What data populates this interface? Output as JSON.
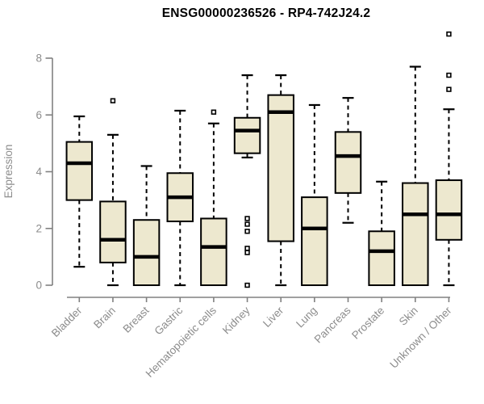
{
  "chart_data": {
    "type": "boxplot",
    "title": "ENSG00000236526 - RP4-742J24.2",
    "ylabel": "Expression",
    "xlabel": "",
    "ylim": [
      0,
      8
    ],
    "yticks": [
      0,
      2,
      4,
      6,
      8
    ],
    "grid": false,
    "legend_position": "none",
    "colors": {
      "box_fill": "#EDE8CF",
      "box_stroke": "#000000",
      "median": "#000000",
      "whisker": "#000000",
      "outlier_stroke": "#000000",
      "outlier_fill": "#FFFFFF",
      "axis": "#808080",
      "tick_text": "#8C8C8C",
      "title_text": "#000000",
      "background": "#FFFFFF"
    },
    "categories": [
      "Bladder",
      "Brain",
      "Breast",
      "Gastric",
      "Hematopoietic cells",
      "Kidney",
      "Liver",
      "Lung",
      "Pancreas",
      "Prostate",
      "Skin",
      "Unknown / Other"
    ],
    "series": [
      {
        "name": "Bladder",
        "low": 0.65,
        "q1": 3.0,
        "median": 4.3,
        "q3": 5.05,
        "high": 5.95,
        "outliers": []
      },
      {
        "name": "Brain",
        "low": 0.0,
        "q1": 0.8,
        "median": 1.6,
        "q3": 2.95,
        "high": 5.3,
        "outliers": [
          6.5
        ]
      },
      {
        "name": "Breast",
        "low": 0.0,
        "q1": 0.0,
        "median": 1.0,
        "q3": 2.3,
        "high": 4.2,
        "outliers": []
      },
      {
        "name": "Gastric",
        "low": 0.0,
        "q1": 2.25,
        "median": 3.1,
        "q3": 3.95,
        "high": 6.15,
        "outliers": []
      },
      {
        "name": "Hematopoietic cells",
        "low": 0.0,
        "q1": 0.0,
        "median": 1.35,
        "q3": 2.35,
        "high": 5.7,
        "outliers": [
          6.1
        ]
      },
      {
        "name": "Kidney",
        "low": 4.5,
        "q1": 4.65,
        "median": 5.45,
        "q3": 5.9,
        "high": 7.4,
        "outliers": [
          2.35,
          2.15,
          1.9,
          1.3,
          1.15,
          0.0
        ]
      },
      {
        "name": "Liver",
        "low": 0.0,
        "q1": 1.55,
        "median": 6.1,
        "q3": 6.7,
        "high": 7.4,
        "outliers": []
      },
      {
        "name": "Lung",
        "low": 0.0,
        "q1": 0.0,
        "median": 2.0,
        "q3": 3.1,
        "high": 6.35,
        "outliers": []
      },
      {
        "name": "Pancreas",
        "low": 2.2,
        "q1": 3.25,
        "median": 4.55,
        "q3": 5.4,
        "high": 6.6,
        "outliers": []
      },
      {
        "name": "Prostate",
        "low": 0.0,
        "q1": 0.0,
        "median": 1.2,
        "q3": 1.9,
        "high": 3.65,
        "outliers": []
      },
      {
        "name": "Skin",
        "low": 0.0,
        "q1": 0.0,
        "median": 2.5,
        "q3": 3.6,
        "high": 7.7,
        "outliers": []
      },
      {
        "name": "Unknown / Other",
        "low": 0.0,
        "q1": 1.6,
        "median": 2.5,
        "q3": 3.7,
        "high": 6.2,
        "outliers": [
          8.85,
          7.4,
          6.9
        ]
      }
    ]
  }
}
